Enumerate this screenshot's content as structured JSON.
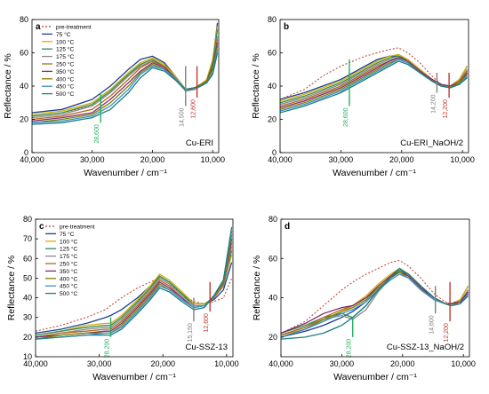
{
  "figure": {
    "temperature_colors": [
      "#c0392b",
      "#1f3f8f",
      "#d4b000",
      "#2e8b57",
      "#8a8a8a",
      "#b5651d",
      "#7b2c6f",
      "#808000",
      "#3c8fd0",
      "#1a7f7f"
    ],
    "annotation_colors": {
      "green": "#27ae60",
      "red": "#c0392b",
      "gray": "#7f7f7f"
    }
  },
  "chart_data": [
    {
      "id": "a",
      "type": "line",
      "panel_letter": "a",
      "sample_label": "Cu-ERI",
      "xlabel": "Wavenumber / cm⁻¹",
      "ylabel": "Reflectance / %",
      "xlim": [
        40000,
        9000
      ],
      "ylim": [
        0,
        80
      ],
      "xticks": [
        40000,
        30000,
        20000,
        10000
      ],
      "xtick_labels": [
        "40,000",
        "30,000",
        "20,000",
        "10,000"
      ],
      "yticks": [
        0,
        20,
        40,
        60,
        80
      ],
      "ytick_labels": [
        "0",
        "20",
        "40",
        "60",
        "80"
      ],
      "legend": [
        "pre-treatment",
        "75 °C",
        "100 °C",
        "125 °C",
        "175 °C",
        "250 °C",
        "350 °C",
        "400 °C",
        "450 °C",
        "500 °C"
      ],
      "legend_position": "top-left",
      "x": [
        40000,
        35000,
        30000,
        27000,
        24000,
        22000,
        20000,
        18000,
        16000,
        14500,
        13000,
        12000,
        11000,
        10000,
        9200
      ],
      "series": [
        {
          "values": [
            22,
            24,
            28,
            36,
            46,
            52,
            55,
            52,
            44,
            38,
            39,
            40,
            42,
            50,
            60
          ]
        },
        {
          "values": [
            24,
            26,
            32,
            40,
            50,
            56,
            58,
            54,
            45,
            38,
            38,
            40,
            43,
            55,
            78
          ]
        },
        {
          "values": [
            23,
            25,
            30,
            38,
            48,
            54,
            57,
            53,
            45,
            38,
            39,
            41,
            44,
            56,
            76
          ]
        },
        {
          "values": [
            22,
            24,
            29,
            37,
            47,
            53,
            56,
            52,
            44,
            37,
            38,
            40,
            43,
            54,
            74
          ]
        },
        {
          "values": [
            21,
            23,
            28,
            36,
            46,
            52,
            55,
            51,
            43,
            37,
            38,
            40,
            42,
            52,
            70
          ]
        },
        {
          "values": [
            20,
            22,
            26,
            34,
            44,
            51,
            55,
            52,
            44,
            38,
            39,
            41,
            43,
            52,
            68
          ]
        },
        {
          "values": [
            19,
            21,
            24,
            32,
            42,
            49,
            54,
            51,
            44,
            38,
            39,
            41,
            43,
            51,
            66
          ]
        },
        {
          "values": [
            18,
            20,
            23,
            30,
            40,
            48,
            53,
            50,
            44,
            38,
            39,
            41,
            43,
            50,
            64
          ]
        },
        {
          "values": [
            18,
            19,
            22,
            28,
            38,
            47,
            52,
            50,
            44,
            38,
            39,
            40,
            42,
            48,
            62
          ]
        },
        {
          "values": [
            17,
            18,
            21,
            26,
            36,
            45,
            51,
            49,
            43,
            38,
            39,
            40,
            42,
            47,
            60
          ]
        }
      ],
      "annotations": [
        {
          "label": "28,600",
          "x": 28600,
          "color": "green",
          "y1": 18,
          "y2": 36
        },
        {
          "label": "14,500",
          "x": 14500,
          "color": "gray",
          "y1": 28,
          "y2": 52
        },
        {
          "label": "12,600",
          "x": 12600,
          "color": "red",
          "y1": 33,
          "y2": 52
        }
      ]
    },
    {
      "id": "b",
      "type": "line",
      "panel_letter": "b",
      "sample_label": "Cu-ERI_NaOH/2",
      "xlabel": "Wavenumber / cm⁻¹",
      "ylabel": "Reflectance / %",
      "xlim": [
        40000,
        9000
      ],
      "ylim": [
        0,
        80
      ],
      "xticks": [
        40000,
        30000,
        20000,
        10000
      ],
      "xtick_labels": [
        "40,000",
        "30,000",
        "20,000",
        "10,000"
      ],
      "yticks": [
        0,
        20,
        40,
        60,
        80
      ],
      "ytick_labels": [
        "0",
        "20",
        "40",
        "60",
        "80"
      ],
      "x": [
        40000,
        36000,
        33000,
        30000,
        28000,
        26000,
        24000,
        22000,
        20500,
        19000,
        17000,
        15000,
        13500,
        12000,
        10500,
        9200
      ],
      "series": [
        {
          "values": [
            32,
            38,
            46,
            52,
            55,
            58,
            60,
            62,
            63,
            60,
            54,
            46,
            41,
            40,
            42,
            48
          ]
        },
        {
          "values": [
            32,
            36,
            40,
            44,
            48,
            52,
            56,
            58,
            58,
            56,
            50,
            44,
            40,
            40,
            44,
            52
          ]
        },
        {
          "values": [
            31,
            35,
            39,
            43,
            47,
            51,
            55,
            58,
            59,
            56,
            50,
            44,
            40,
            40,
            44,
            52
          ]
        },
        {
          "values": [
            30,
            34,
            38,
            42,
            46,
            50,
            54,
            57,
            58,
            55,
            49,
            43,
            40,
            40,
            43,
            50
          ]
        },
        {
          "values": [
            29,
            33,
            37,
            41,
            45,
            49,
            53,
            56,
            57,
            55,
            49,
            43,
            40,
            40,
            43,
            50
          ]
        },
        {
          "values": [
            28,
            32,
            36,
            40,
            44,
            48,
            52,
            55,
            57,
            55,
            49,
            44,
            41,
            40,
            43,
            49
          ]
        },
        {
          "values": [
            27,
            31,
            35,
            39,
            43,
            47,
            51,
            55,
            57,
            55,
            49,
            44,
            41,
            40,
            42,
            48
          ]
        },
        {
          "values": [
            26,
            30,
            34,
            38,
            42,
            46,
            50,
            54,
            56,
            54,
            48,
            43,
            40,
            39,
            42,
            47
          ]
        },
        {
          "values": [
            25,
            29,
            33,
            37,
            41,
            45,
            49,
            53,
            56,
            54,
            48,
            43,
            40,
            39,
            41,
            46
          ]
        },
        {
          "values": [
            24,
            28,
            32,
            36,
            40,
            44,
            48,
            52,
            55,
            53,
            48,
            43,
            40,
            39,
            41,
            45
          ]
        }
      ],
      "annotations": [
        {
          "label": "28,600",
          "x": 28600,
          "color": "green",
          "y1": 28,
          "y2": 56
        },
        {
          "label": "14,200",
          "x": 14200,
          "color": "gray",
          "y1": 36,
          "y2": 48
        },
        {
          "label": "12,200",
          "x": 12200,
          "color": "red",
          "y1": 33,
          "y2": 48
        }
      ]
    },
    {
      "id": "c",
      "type": "line",
      "panel_letter": "c",
      "sample_label": "Cu-SSZ-13",
      "xlabel": "Wavenumber / cm⁻¹",
      "ylabel": "Reflectance / %",
      "xlim": [
        40000,
        9000
      ],
      "ylim": [
        10,
        80
      ],
      "xticks": [
        40000,
        30000,
        20000,
        10000
      ],
      "xtick_labels": [
        "40,000",
        "30,000",
        "20,000",
        "10,000"
      ],
      "yticks": [
        10,
        20,
        30,
        40,
        50,
        60,
        70,
        80
      ],
      "ytick_labels": [
        "10",
        "20",
        "30",
        "40",
        "50",
        "60",
        "70",
        "80"
      ],
      "legend": [
        "pre-treatment",
        "75 °C",
        "100 °C",
        "125 °C",
        "175 °C",
        "250 °C",
        "350 °C",
        "400 °C",
        "450 °C",
        "500 °C"
      ],
      "legend_position": "top-left",
      "x": [
        40000,
        36000,
        32000,
        29000,
        28200,
        26500,
        24000,
        22000,
        20500,
        19000,
        17000,
        15150,
        13500,
        12000,
        10500,
        9200
      ],
      "series": [
        {
          "values": [
            23,
            26,
            30,
            34,
            36,
            40,
            45,
            48,
            50,
            47,
            42,
            38,
            37,
            38,
            40,
            50
          ]
        },
        {
          "values": [
            22,
            24,
            27,
            30,
            31,
            34,
            40,
            46,
            51,
            48,
            42,
            37,
            37,
            39,
            44,
            58
          ]
        },
        {
          "values": [
            21,
            23,
            26,
            27,
            27,
            31,
            39,
            46,
            52,
            49,
            43,
            37,
            37,
            40,
            46,
            62
          ]
        },
        {
          "values": [
            21,
            23,
            25,
            26,
            26,
            30,
            38,
            45,
            51,
            48,
            42,
            36,
            36,
            40,
            46,
            64
          ]
        },
        {
          "values": [
            20,
            22,
            24,
            25,
            25,
            29,
            37,
            44,
            50,
            47,
            41,
            36,
            36,
            40,
            46,
            66
          ]
        },
        {
          "values": [
            20,
            22,
            23,
            24,
            24,
            28,
            36,
            43,
            49,
            46,
            40,
            35,
            36,
            40,
            47,
            68
          ]
        },
        {
          "values": [
            20,
            21,
            22,
            23,
            23,
            27,
            35,
            42,
            48,
            45,
            40,
            35,
            36,
            41,
            48,
            70
          ]
        },
        {
          "values": [
            19,
            21,
            22,
            22,
            22,
            26,
            34,
            41,
            47,
            44,
            39,
            35,
            36,
            41,
            48,
            72
          ]
        },
        {
          "values": [
            19,
            20,
            21,
            22,
            22,
            25,
            33,
            40,
            46,
            44,
            39,
            35,
            36,
            41,
            49,
            74
          ]
        },
        {
          "values": [
            19,
            20,
            21,
            21,
            21,
            24,
            32,
            39,
            45,
            43,
            38,
            34,
            35,
            41,
            49,
            76
          ]
        }
      ],
      "annotations": [
        {
          "label": "28,200",
          "x": 28200,
          "color": "green",
          "y1": 20,
          "y2": 30
        },
        {
          "label": "15,150",
          "x": 15150,
          "color": "gray",
          "y1": 28,
          "y2": 40
        },
        {
          "label": "12,600",
          "x": 12600,
          "color": "red",
          "y1": 33,
          "y2": 48
        }
      ]
    },
    {
      "id": "d",
      "type": "line",
      "panel_letter": "d",
      "sample_label": "Cu-SSZ-13_NaOH/2",
      "xlabel": "Wavenumber / cm⁻¹",
      "ylabel": "Reflectance / %",
      "xlim": [
        40000,
        9000
      ],
      "ylim": [
        10,
        80
      ],
      "xticks": [
        40000,
        30000,
        20000,
        10000
      ],
      "xtick_labels": [
        "40,000",
        "30,000",
        "20,000",
        "10,000"
      ],
      "yticks": [
        20,
        40,
        60,
        80
      ],
      "ytick_labels": [
        "20",
        "40",
        "60",
        "80"
      ],
      "x": [
        40000,
        36000,
        33000,
        30000,
        28200,
        26000,
        24000,
        22000,
        20500,
        19000,
        17000,
        14800,
        13000,
        12000,
        10500,
        9200
      ],
      "series": [
        {
          "values": [
            22,
            28,
            36,
            44,
            48,
            52,
            55,
            58,
            59,
            56,
            50,
            42,
            38,
            37,
            38,
            42
          ]
        },
        {
          "values": [
            20,
            23,
            26,
            30,
            33,
            38,
            44,
            50,
            54,
            52,
            46,
            40,
            37,
            37,
            39,
            46
          ]
        },
        {
          "values": [
            21,
            24,
            28,
            33,
            36,
            41,
            47,
            52,
            55,
            52,
            46,
            40,
            37,
            37,
            39,
            46
          ]
        },
        {
          "values": [
            22,
            26,
            30,
            32,
            30,
            36,
            44,
            51,
            55,
            52,
            46,
            40,
            37,
            37,
            38,
            44
          ]
        },
        {
          "values": [
            21,
            25,
            29,
            31,
            29,
            34,
            43,
            50,
            54,
            51,
            45,
            39,
            37,
            37,
            38,
            44
          ]
        },
        {
          "values": [
            21,
            25,
            30,
            34,
            36,
            40,
            45,
            50,
            53,
            51,
            45,
            40,
            37,
            36,
            38,
            43
          ]
        },
        {
          "values": [
            22,
            27,
            32,
            35,
            36,
            40,
            46,
            51,
            54,
            51,
            45,
            40,
            37,
            37,
            38,
            43
          ]
        },
        {
          "values": [
            20,
            24,
            29,
            33,
            35,
            39,
            45,
            50,
            53,
            50,
            44,
            39,
            37,
            36,
            37,
            42
          ]
        },
        {
          "values": [
            20,
            24,
            28,
            32,
            34,
            38,
            44,
            49,
            52,
            50,
            44,
            39,
            37,
            36,
            37,
            42
          ]
        },
        {
          "values": [
            19,
            20,
            22,
            26,
            30,
            36,
            44,
            50,
            54,
            52,
            46,
            40,
            37,
            36,
            37,
            41
          ]
        }
      ],
      "annotations": [
        {
          "label": "28,200",
          "x": 28200,
          "color": "green",
          "y1": 20,
          "y2": 30
        },
        {
          "label": "14,600",
          "x": 14600,
          "color": "gray",
          "y1": 32,
          "y2": 46
        },
        {
          "label": "12,200",
          "x": 12200,
          "color": "red",
          "y1": 28,
          "y2": 48
        }
      ]
    }
  ]
}
